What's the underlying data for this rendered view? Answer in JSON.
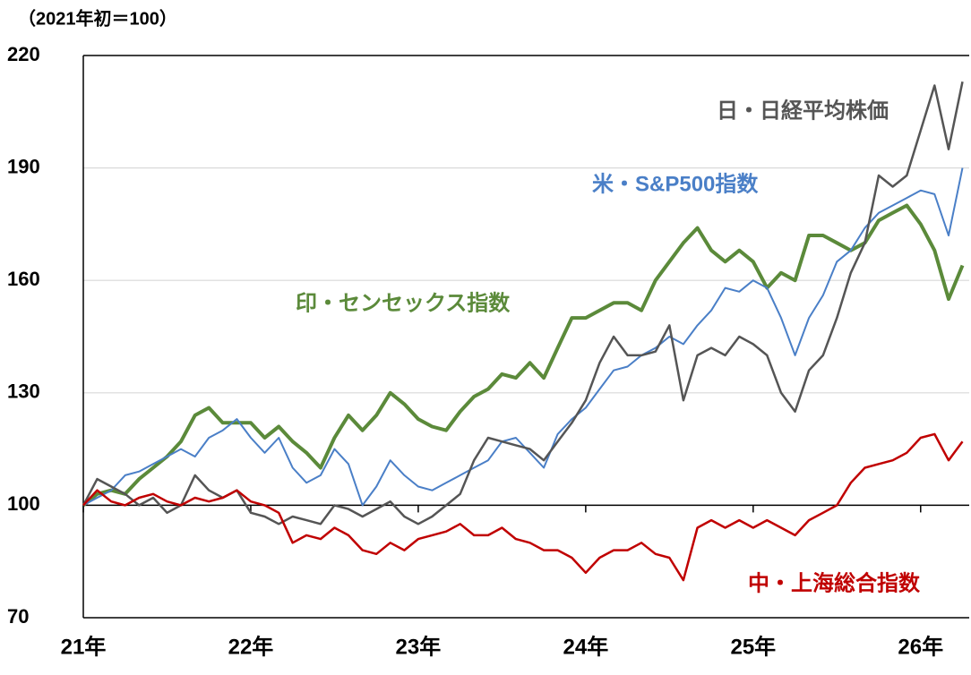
{
  "chart_data": {
    "type": "line",
    "y_label": "（2021年初＝100）",
    "x": [
      21,
      21.083,
      21.167,
      21.25,
      21.333,
      21.417,
      21.5,
      21.583,
      21.667,
      21.75,
      21.833,
      21.917,
      22,
      22.083,
      22.167,
      22.25,
      22.333,
      22.417,
      22.5,
      22.583,
      22.667,
      22.75,
      22.833,
      22.917,
      23,
      23.083,
      23.167,
      23.25,
      23.333,
      23.417,
      23.5,
      23.583,
      23.667,
      23.75,
      23.833,
      23.917,
      24,
      24.083,
      24.167,
      24.25,
      24.333,
      24.417,
      24.5,
      24.583,
      24.667,
      24.75,
      24.833,
      24.917,
      25,
      25.083,
      25.167,
      25.25,
      25.333,
      25.417,
      25.5,
      25.583,
      25.667,
      25.75,
      25.833,
      25.917,
      26,
      26.083,
      26.167,
      26.25
    ],
    "series": [
      {
        "name": "日・日経平均株価",
        "color": "#555555",
        "values": [
          100,
          107,
          105,
          103,
          100,
          102,
          98,
          100,
          108,
          104,
          102,
          104,
          98,
          97,
          95,
          97,
          96,
          95,
          100,
          99,
          97,
          99,
          101,
          97,
          95,
          97,
          100,
          103,
          112,
          118,
          117,
          116,
          115,
          112,
          117,
          122,
          128,
          138,
          145,
          140,
          140,
          141,
          148,
          128,
          140,
          142,
          140,
          145,
          143,
          140,
          130,
          125,
          136,
          140,
          150,
          162,
          170,
          188,
          185,
          188,
          200,
          212,
          195,
          213
        ]
      },
      {
        "name": "米・S&P500指数",
        "color": "#4a7fc7",
        "values": [
          100,
          102,
          104,
          108,
          109,
          111,
          113,
          115,
          113,
          118,
          120,
          123,
          118,
          114,
          118,
          110,
          106,
          108,
          115,
          111,
          100,
          105,
          112,
          108,
          105,
          104,
          106,
          108,
          110,
          112,
          117,
          118,
          114,
          110,
          119,
          123,
          126,
          131,
          136,
          137,
          140,
          142,
          145,
          143,
          148,
          152,
          158,
          157,
          160,
          158,
          150,
          140,
          150,
          156,
          165,
          168,
          174,
          178,
          180,
          182,
          184,
          183,
          172,
          190
        ]
      },
      {
        "name": "印・センセックス指数",
        "color": "#5b8a3a",
        "values": [
          100,
          103,
          104,
          103,
          107,
          110,
          113,
          117,
          124,
          126,
          122,
          122,
          122,
          118,
          121,
          117,
          114,
          110,
          118,
          124,
          120,
          124,
          130,
          127,
          123,
          121,
          120,
          125,
          129,
          131,
          135,
          134,
          138,
          134,
          142,
          150,
          150,
          152,
          154,
          154,
          152,
          160,
          165,
          170,
          174,
          168,
          165,
          168,
          165,
          158,
          162,
          160,
          172,
          172,
          170,
          168,
          170,
          176,
          178,
          180,
          175,
          168,
          155,
          164
        ]
      },
      {
        "name": "中・上海総合指数",
        "color": "#c00000",
        "values": [
          100,
          104,
          101,
          100,
          102,
          103,
          101,
          100,
          102,
          101,
          102,
          104,
          101,
          100,
          98,
          90,
          92,
          91,
          94,
          92,
          88,
          87,
          90,
          88,
          91,
          92,
          93,
          95,
          92,
          92,
          94,
          91,
          90,
          88,
          88,
          86,
          82,
          86,
          88,
          88,
          90,
          87,
          86,
          80,
          94,
          96,
          94,
          96,
          94,
          96,
          94,
          92,
          96,
          98,
          100,
          106,
          110,
          111,
          112,
          114,
          118,
          119,
          112,
          117
        ]
      }
    ],
    "xlim": [
      21,
      26.29
    ],
    "xticks": [
      {
        "value": 21,
        "label": "21年"
      },
      {
        "value": 22,
        "label": "22年"
      },
      {
        "value": 23,
        "label": "23年"
      },
      {
        "value": 24,
        "label": "24年"
      },
      {
        "value": 25,
        "label": "25年"
      },
      {
        "value": 26,
        "label": "26年"
      }
    ],
    "ylim": [
      70,
      220
    ],
    "yticks": [
      70,
      100,
      130,
      160,
      190,
      220
    ],
    "x_axis_at": 100,
    "grid": true
  }
}
